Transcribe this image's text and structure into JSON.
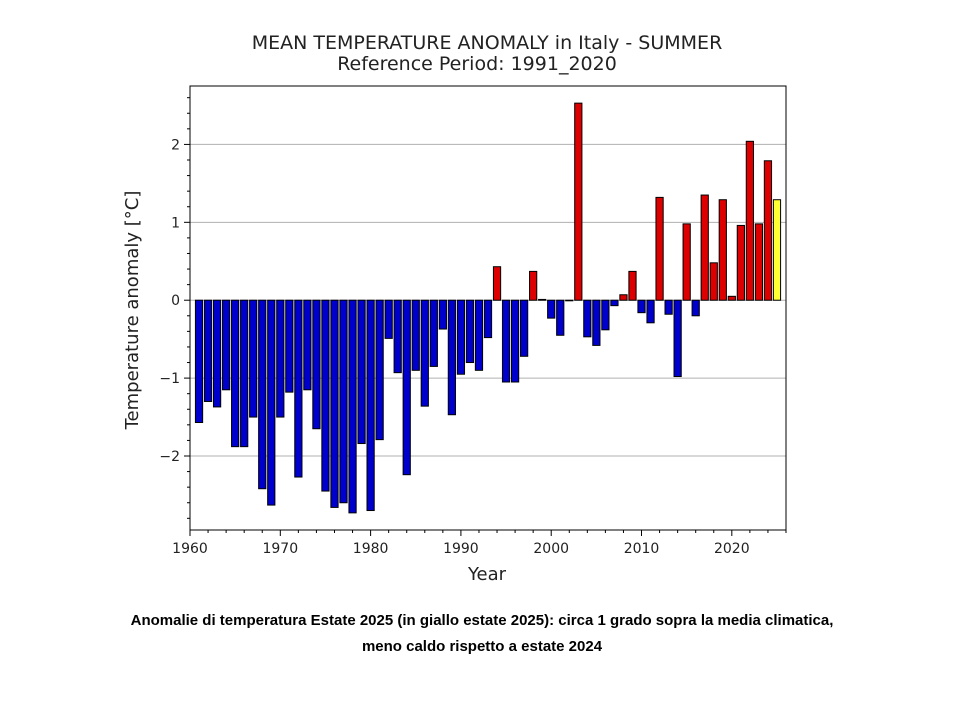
{
  "chart_data": {
    "type": "bar",
    "title": "MEAN TEMPERATURE ANOMALY in Italy - SUMMER",
    "subtitle": "Reference Period: 1991_2020",
    "xlabel": "Year",
    "ylabel": "Temperature anomaly [°C]",
    "xlim": [
      1960,
      2026
    ],
    "ylim": [
      -2.95,
      2.75
    ],
    "xticks": [
      1960,
      1970,
      1980,
      1990,
      2000,
      2010,
      2020
    ],
    "yticks": [
      -2,
      -1,
      0,
      1,
      2
    ],
    "ytick_labels": [
      "−2",
      "−1",
      "0",
      "1",
      "2"
    ],
    "grid": "horizontal",
    "years": [
      1961,
      1962,
      1963,
      1964,
      1965,
      1966,
      1967,
      1968,
      1969,
      1970,
      1971,
      1972,
      1973,
      1974,
      1975,
      1976,
      1977,
      1978,
      1979,
      1980,
      1981,
      1982,
      1983,
      1984,
      1985,
      1986,
      1987,
      1988,
      1989,
      1990,
      1991,
      1992,
      1993,
      1994,
      1995,
      1996,
      1997,
      1998,
      1999,
      2000,
      2001,
      2002,
      2003,
      2004,
      2005,
      2006,
      2007,
      2008,
      2009,
      2010,
      2011,
      2012,
      2013,
      2014,
      2015,
      2016,
      2017,
      2018,
      2019,
      2020,
      2021,
      2022,
      2023,
      2024,
      2025
    ],
    "values": [
      -1.57,
      -1.3,
      -1.37,
      -1.15,
      -1.88,
      -1.88,
      -1.5,
      -2.42,
      -2.63,
      -1.5,
      -1.18,
      -2.27,
      -1.15,
      -1.65,
      -2.45,
      -2.66,
      -2.6,
      -2.73,
      -1.84,
      -2.7,
      -1.79,
      -0.49,
      -0.93,
      -2.24,
      -0.9,
      -1.36,
      -0.85,
      -0.37,
      -1.47,
      -0.95,
      -0.8,
      -0.9,
      -0.48,
      0.43,
      -1.05,
      -1.05,
      -0.72,
      0.37,
      0.01,
      -0.23,
      -0.45,
      0.0,
      2.53,
      -0.47,
      -0.58,
      -0.38,
      -0.07,
      0.07,
      0.37,
      -0.16,
      -0.29,
      1.32,
      -0.18,
      -0.98,
      0.98,
      -0.2,
      1.35,
      0.48,
      1.29,
      0.05,
      0.96,
      2.04,
      0.98,
      1.79,
      1.29
    ],
    "highlight_year": 2025,
    "colors": {
      "negative": "#0000cc",
      "positive": "#dd0000",
      "highlight": "#ffff33",
      "edge": "#000000",
      "grid": "#b0b0b0"
    }
  },
  "caption": {
    "line1": "Anomalie di temperatura Estate 2025  (in giallo estate 2025): circa 1 grado sopra la media climatica,",
    "line2": "meno caldo rispetto a estate 2024"
  }
}
